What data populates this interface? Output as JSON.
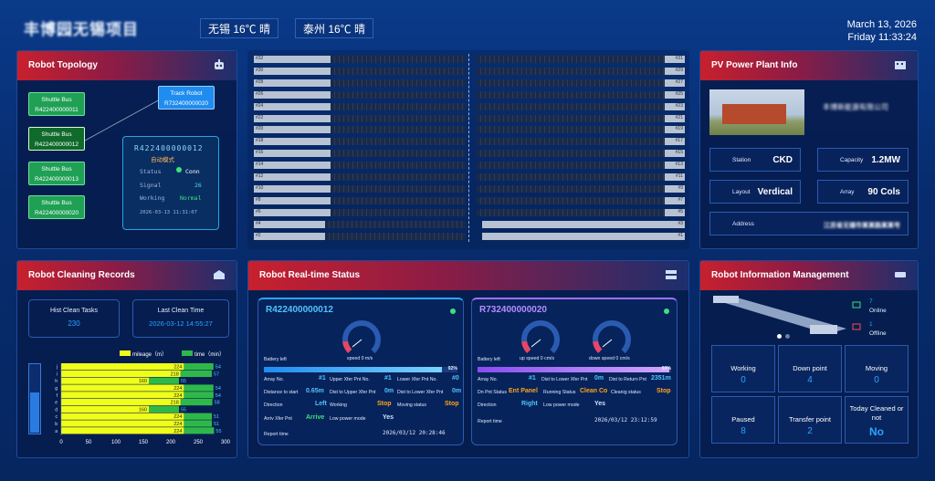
{
  "header": {
    "title": "丰博园无锡项目",
    "weather1": "无锡 16℃ 晴",
    "weather2": "泰州 16℃ 晴",
    "date": "March 13, 2026",
    "time": "Friday 11:33:24"
  },
  "colors": {
    "bg": "#072c6e",
    "header_red": "#c8202e",
    "accent": "#2aa5ff",
    "green": "#1fa055",
    "yellow": "#f0ff1a",
    "orange": "#ffa51a"
  },
  "topology": {
    "title": "Robot Topology",
    "nodes": [
      {
        "type": "Shuttle Bus",
        "id": "R422400000011"
      },
      {
        "type": "Shuttle Bus",
        "id": "R422400000012"
      },
      {
        "type": "Shuttle Bus",
        "id": "R422400000013"
      },
      {
        "type": "Shuttle Bus",
        "id": "R422400000020"
      }
    ],
    "track": {
      "type": "Track Robot",
      "id": "R732400000020"
    },
    "popup": {
      "id": "R422400000012",
      "sub": "自动模式",
      "status_k": "Status",
      "status_v": "Conn",
      "signal_k": "Signal",
      "signal_v": "26",
      "working_k": "Working",
      "working_v": "Normal",
      "time": "2026-03-13 11:31:07"
    }
  },
  "rows": {
    "left": [
      "#32",
      "#30",
      "#28",
      "#26",
      "#24",
      "#22",
      "#20",
      "#18",
      "#16",
      "#14",
      "#12",
      "#10",
      "#8",
      "#6",
      "#4",
      "#2"
    ],
    "right": [
      "#31",
      "#29",
      "#27",
      "#25",
      "#23",
      "#21",
      "#19",
      "#17",
      "#15",
      "#13",
      "#11",
      "#9",
      "#7",
      "#5",
      "#3",
      "#1"
    ]
  },
  "pv": {
    "title": "PV Power Plant Info",
    "company": "丰博新能源有限公司",
    "station_k": "Station",
    "station_v": "CKD",
    "capacity_k": "Capacity",
    "capacity_v": "1.2MW",
    "layout_k": "Layout",
    "layout_v": "Verdical",
    "array_k": "Array",
    "array_v": "90 Cols",
    "address_k": "Address",
    "address_v": "江苏省无锡市某某路某某号"
  },
  "cleaning": {
    "title": "Robot Cleaning Records",
    "hist_label": "Hist Clean Tasks",
    "hist_value": "230",
    "last_label": "Last Clean Time",
    "last_value": "2026-03-12 14:55:27",
    "legend_mileage": "mileage（m）",
    "legend_time": "time（min）"
  },
  "chart_data": {
    "type": "bar",
    "categories": [
      "a",
      "b",
      "c",
      "d",
      "e",
      "f",
      "g",
      "h",
      "i",
      "j"
    ],
    "series": [
      {
        "name": "mileage（m）",
        "values": [
          224,
          224,
          224,
          160,
          218,
          224,
          224,
          160,
          218,
          224
        ]
      },
      {
        "name": "time（min）",
        "values": [
          55,
          51,
          51,
          55,
          58,
          54,
          54,
          55,
          57,
          54
        ]
      }
    ],
    "xticks": [
      "0",
      "50",
      "100",
      "150",
      "200",
      "250",
      "300"
    ],
    "xlim": [
      0,
      300
    ],
    "stacked": true,
    "orientation": "horizontal"
  },
  "realtime": {
    "title": "Robot Real-time Status",
    "r1": {
      "id": "R422400000012",
      "battery_k": "Battery left",
      "battery_v": "92%",
      "battery": 0.92,
      "gauge": "speed 0 m/s",
      "array_k": "Array No.",
      "array_v": "#1",
      "up_k": "Upper Xfer Pnt No.",
      "up_v": "#1",
      "low_k": "Lower Xfer Pnt No.",
      "low_v": "#0",
      "dist_k": "Distance to start",
      "dist_v": "0.65m",
      "du_k": "Dist to Upper Xfer Pnt",
      "du_v": "0m",
      "dl_k": "Dist to Lower Xfer Pnt",
      "dl_v": "0m",
      "dir_k": "Direction",
      "dir_v": "Left",
      "work_k": "Working",
      "work_v": "Stop",
      "mov_k": "Moving status",
      "mov_v": "Stop",
      "arr_k": "Arriv Xfer Pnt",
      "arr_v": "Arrive",
      "lp_k": "Low power mode",
      "lp_v": "Yes",
      "rt_k": "Report time",
      "rt_v": "2026/03/12 20:28:46"
    },
    "r2": {
      "id": "R732400000020",
      "battery_k": "Battery left",
      "battery_v": "99%",
      "battery": 0.99,
      "gauge1": "up speed 0 cm/s",
      "gauge2": "down speed 0 cm/s",
      "array_k": "Array No.",
      "array_v": "#1",
      "dl_k": "Dist to Lower Xfer Pnt",
      "dl_v": "0m",
      "dr_k": "Dist to Return Pnt",
      "dr_v": "2351m",
      "dn_k": "Dn Pnt Status",
      "dn_v": "Ent Panel",
      "run_k": "Running Status",
      "run_v": "Clean Co",
      "cs_k": "Cleanig status",
      "cs_v": "Stop",
      "dir_k": "Direction",
      "dir_v": "Right",
      "lp_k": "Low power mode",
      "lp_v": "Yes",
      "rt_k": "Report time",
      "rt_v": "2026/03/12 23:12:59"
    }
  },
  "mgmt": {
    "title": "Robot Information Management",
    "online_n": "7",
    "online": "Online",
    "offline_n": "1",
    "offline": "Offline",
    "stats": [
      {
        "label": "Working",
        "value": "0"
      },
      {
        "label": "Down point",
        "value": "4"
      },
      {
        "label": "Moving",
        "value": "0"
      },
      {
        "label": "Paused",
        "value": "8"
      },
      {
        "label": "Transfer point",
        "value": "2"
      },
      {
        "label": "Today Cleaned or not",
        "value": "No"
      }
    ]
  }
}
